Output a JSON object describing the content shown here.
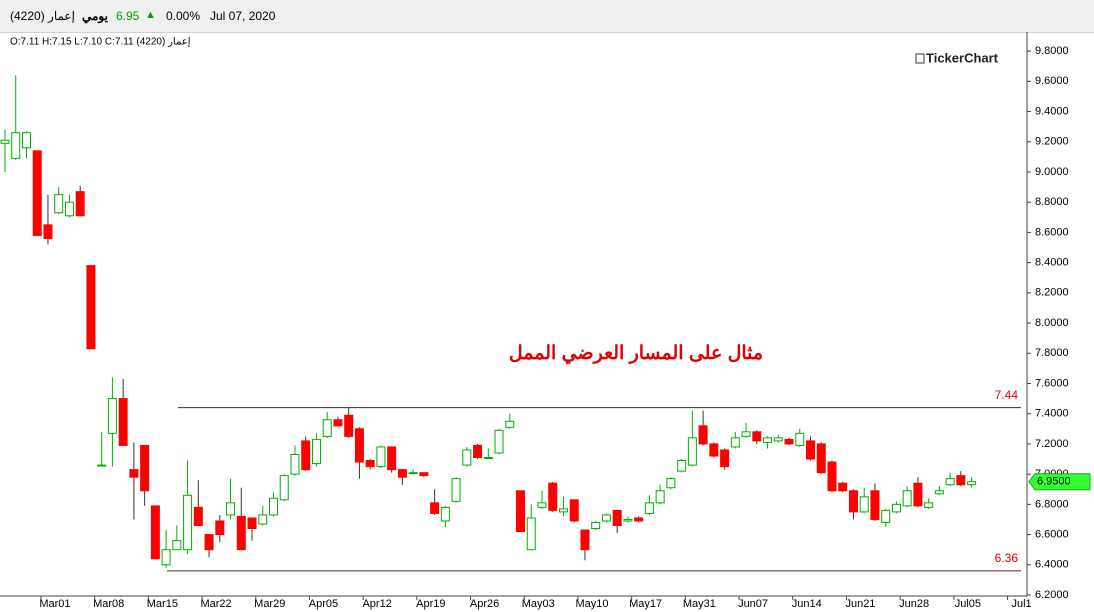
{
  "header": {
    "symbol": "إعمار  (4220)",
    "period": "يومي",
    "price": "6.95",
    "change": "0.00%",
    "date": "Jul 07, 2020"
  },
  "chart_data": {
    "type": "candlestick",
    "legend_text": "إعمار  (4220)  O:7.11  H:7.15  L:7.10  C:7.11",
    "brand": "TickerChart",
    "annotation": "مثال على المسار العرضي الممل",
    "up_color": "#00b000",
    "down_color": "#ff0000",
    "categories": [
      null,
      null,
      null,
      null,
      "Mar01",
      null,
      null,
      null,
      null,
      "Mar08",
      null,
      null,
      null,
      null,
      "Mar15",
      null,
      null,
      null,
      null,
      "Mar22",
      null,
      null,
      null,
      null,
      "Mar29",
      null,
      null,
      null,
      null,
      "Apr05",
      null,
      null,
      null,
      null,
      "Apr12",
      null,
      null,
      null,
      null,
      "Apr19",
      null,
      null,
      null,
      null,
      "Apr26",
      null,
      null,
      null,
      null,
      "May03",
      null,
      null,
      null,
      null,
      "May10",
      null,
      null,
      null,
      null,
      "May17",
      null,
      null,
      null,
      null,
      "May31",
      null,
      null,
      null,
      null,
      "Jun07",
      null,
      null,
      null,
      null,
      "Jun14",
      null,
      null,
      null,
      null,
      "Jun21",
      null,
      null,
      null,
      null,
      "Jun28",
      null,
      null,
      null,
      null,
      "Jul05",
      null,
      null,
      null,
      null,
      "Jul1"
    ],
    "open": [
      9.19,
      9.09,
      9.16,
      9.14,
      8.65,
      8.73,
      8.71,
      8.87,
      8.38,
      7.06,
      7.27,
      7.5,
      7.03,
      7.19,
      6.79,
      6.4,
      6.5,
      6.5,
      6.78,
      6.6,
      6.69,
      6.73,
      6.72,
      6.71,
      6.67,
      6.73,
      6.83,
      7.0,
      7.22,
      7.07,
      7.25,
      7.36,
      7.39,
      7.3,
      7.09,
      7.05,
      7.18,
      7.03,
      7.01,
      7.01,
      6.81,
      6.69,
      6.82,
      7.06,
      7.19,
      7.11,
      7.14,
      7.31,
      6.89,
      6.5,
      6.78,
      6.94,
      6.75,
      6.83,
      6.63,
      6.64,
      6.69,
      6.76,
      6.69,
      6.71,
      6.74,
      6.81,
      6.91,
      7.02,
      7.06,
      7.32,
      7.2,
      7.16,
      7.18,
      7.25,
      7.28,
      7.21,
      7.22,
      7.23,
      7.19,
      7.22,
      7.2,
      7.08,
      6.94,
      6.89,
      6.75,
      6.89,
      6.68,
      6.75,
      6.79,
      6.94,
      6.78,
      6.87,
      6.93,
      6.99,
      6.93,
      null,
      null,
      null,
      null
    ],
    "high": [
      9.28,
      9.64,
      9.27,
      9.14,
      8.85,
      8.9,
      8.85,
      8.91,
      8.38,
      7.28,
      7.64,
      7.63,
      7.21,
      7.19,
      6.79,
      6.63,
      6.66,
      7.09,
      6.96,
      6.6,
      6.73,
      6.97,
      6.91,
      6.71,
      6.79,
      6.88,
      7.0,
      7.19,
      7.25,
      7.27,
      7.41,
      7.38,
      7.44,
      7.31,
      7.1,
      7.19,
      7.18,
      7.03,
      7.03,
      7.01,
      6.9,
      6.79,
      6.98,
      7.18,
      7.2,
      7.17,
      7.3,
      7.4,
      6.89,
      6.8,
      6.89,
      6.95,
      6.85,
      6.83,
      6.63,
      6.69,
      6.74,
      6.76,
      6.72,
      6.72,
      6.86,
      6.93,
      6.98,
      7.1,
      7.42,
      7.42,
      7.21,
      7.17,
      7.28,
      7.34,
      7.29,
      7.25,
      7.26,
      7.24,
      7.3,
      7.25,
      7.21,
      7.09,
      6.95,
      6.9,
      6.91,
      6.94,
      6.77,
      6.82,
      6.92,
      6.98,
      6.84,
      6.92,
      7.01,
      7.02,
      6.98,
      null,
      null,
      null,
      null
    ],
    "low": [
      9.0,
      9.08,
      9.09,
      8.58,
      8.52,
      8.72,
      8.7,
      8.71,
      7.83,
      7.05,
      7.05,
      7.19,
      6.7,
      6.79,
      6.44,
      6.38,
      6.5,
      6.47,
      6.66,
      6.45,
      6.55,
      6.7,
      6.5,
      6.56,
      6.66,
      6.72,
      6.82,
      6.99,
      7.02,
      7.05,
      7.24,
      7.32,
      7.24,
      6.97,
      7.03,
      7.04,
      7.01,
      6.93,
      7.0,
      6.98,
      6.73,
      6.65,
      6.81,
      7.05,
      7.1,
      7.1,
      7.13,
      7.3,
      6.62,
      6.5,
      6.77,
      6.75,
      6.72,
      6.68,
      6.43,
      6.63,
      6.68,
      6.61,
      6.68,
      6.68,
      6.73,
      6.8,
      6.9,
      7.01,
      7.05,
      7.19,
      7.11,
      7.03,
      7.17,
      7.24,
      7.2,
      7.17,
      7.21,
      7.19,
      7.18,
      7.09,
      7.0,
      6.88,
      6.88,
      6.7,
      6.74,
      6.69,
      6.65,
      6.74,
      6.78,
      6.78,
      6.77,
      6.86,
      6.92,
      6.92,
      6.91,
      null,
      null,
      null,
      null
    ],
    "close": [
      9.21,
      9.26,
      9.26,
      8.58,
      8.56,
      8.85,
      8.8,
      8.71,
      7.83,
      7.06,
      7.5,
      7.19,
      6.98,
      6.89,
      6.44,
      6.5,
      6.56,
      6.86,
      6.66,
      6.5,
      6.6,
      6.81,
      6.5,
      6.64,
      6.73,
      6.84,
      6.99,
      7.13,
      7.03,
      7.23,
      7.36,
      7.32,
      7.25,
      7.08,
      7.05,
      7.18,
      7.03,
      6.98,
      7.01,
      6.99,
      6.74,
      6.78,
      6.97,
      7.16,
      7.11,
      7.11,
      7.29,
      7.35,
      6.62,
      6.71,
      6.81,
      6.76,
      6.77,
      6.69,
      6.5,
      6.68,
      6.73,
      6.66,
      6.7,
      6.69,
      6.81,
      6.89,
      6.97,
      7.09,
      7.24,
      7.2,
      7.12,
      7.05,
      7.24,
      7.28,
      7.22,
      7.24,
      7.24,
      7.2,
      7.27,
      7.1,
      7.01,
      6.89,
      6.89,
      6.75,
      6.85,
      6.7,
      6.76,
      6.8,
      6.89,
      6.79,
      6.81,
      6.89,
      6.97,
      6.93,
      6.95,
      null,
      null,
      null,
      null
    ],
    "lines": [
      {
        "value": 7.44
      },
      {
        "value": 6.36
      }
    ],
    "last_price": {
      "value": 6.95,
      "label": "6.9500"
    },
    "ylim": [
      6.2,
      9.9
    ],
    "yticks": [
      {
        "value": 6.2,
        "label": "6.2000"
      },
      {
        "value": 6.4,
        "label": "6.4000"
      },
      {
        "value": 6.6,
        "label": "6.6000"
      },
      {
        "value": 6.8,
        "label": "6.8000"
      },
      {
        "value": 7.0,
        "label": "7.0000"
      },
      {
        "value": 7.2,
        "label": "7.2000"
      },
      {
        "value": 7.4,
        "label": "7.4000"
      },
      {
        "value": 7.6,
        "label": "7.6000"
      },
      {
        "value": 7.8,
        "label": "7.8000"
      },
      {
        "value": 8.0,
        "label": "8.0000"
      },
      {
        "value": 8.2,
        "label": "8.2000"
      },
      {
        "value": 8.4,
        "label": "8.4000"
      },
      {
        "value": 8.6,
        "label": "8.6000"
      },
      {
        "value": 8.8,
        "label": "8.8000"
      },
      {
        "value": 9.0,
        "label": "9.0000"
      },
      {
        "value": 9.2,
        "label": "9.2000"
      },
      {
        "value": 9.4,
        "label": "9.4000"
      },
      {
        "value": 9.6,
        "label": "9.6000"
      },
      {
        "value": 9.8,
        "label": "9.8000"
      }
    ]
  }
}
